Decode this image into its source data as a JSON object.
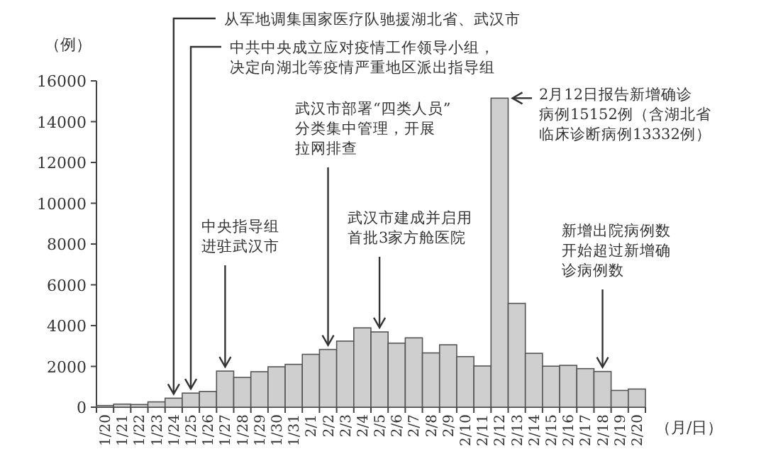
{
  "chart_data": {
    "type": "bar",
    "ylabel": "（例）",
    "xlabel": "（月/日）",
    "categories": [
      "1/20",
      "1/21",
      "1/22",
      "1/23",
      "1/24",
      "1/25",
      "1/26",
      "1/27",
      "1/28",
      "1/29",
      "1/30",
      "1/31",
      "2/1",
      "2/2",
      "2/3",
      "2/4",
      "2/5",
      "2/6",
      "2/7",
      "2/8",
      "2/9",
      "2/10",
      "2/11",
      "2/12",
      "2/13",
      "2/14",
      "2/15",
      "2/16",
      "2/17",
      "2/18",
      "2/19",
      "2/20"
    ],
    "values": [
      80,
      150,
      130,
      260,
      440,
      690,
      770,
      1770,
      1460,
      1740,
      1980,
      2100,
      2590,
      2830,
      3240,
      3890,
      3690,
      3140,
      3400,
      2660,
      3060,
      2480,
      2020,
      15152,
      5090,
      2640,
      2010,
      2050,
      1890,
      1750,
      820,
      890
    ],
    "color": "#cfcfcf",
    "ylim": [
      0,
      16000
    ],
    "yticks": [
      0,
      2000,
      4000,
      6000,
      8000,
      10000,
      12000,
      14000,
      16000
    ],
    "grid": false,
    "annotations": [
      {
        "text": "从军地调集国家医疗队驰援湖北省、武汉市",
        "x": "1/24",
        "y": 440
      },
      {
        "text": "中共中央成立应对疫情工作领导小组，决定向湖北等疫情严重地区派出指导组",
        "x": "1/25",
        "y": 690
      },
      {
        "text": "中央指导组进驻武汉市",
        "x": "1/27",
        "y": 1770
      },
      {
        "text": "武汉市部署“四类人员”分类集中管理，开展拉网排查",
        "x": "2/2",
        "y": 2830
      },
      {
        "text": "武汉市建成并启用首批3家方舱医院",
        "x": "2/5",
        "y": 3690
      },
      {
        "text": "2月12日报告新增确诊病例15152例（含湖北省临床诊断病例13332例）",
        "x": "2/12",
        "y": 15152
      },
      {
        "text": "新增出院病例数开始超过新增确诊病例数",
        "x": "2/18",
        "y": 1750
      }
    ]
  }
}
